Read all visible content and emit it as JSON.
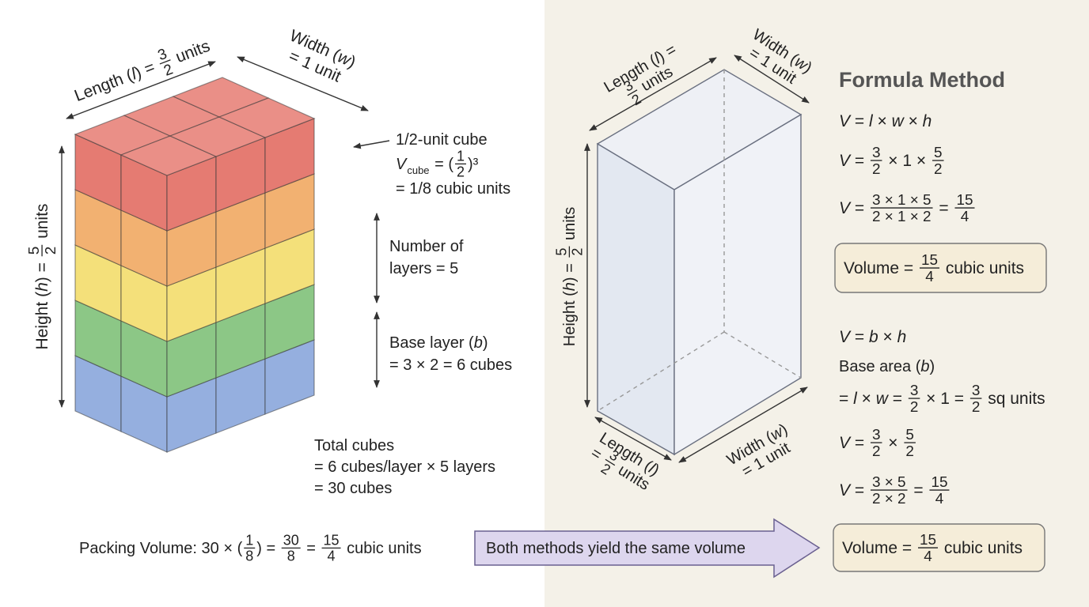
{
  "left": {
    "length": [
      [
        "Length (",
        "l",
        ") = ",
        {
          "num": "3",
          "den": "2"
        },
        " units"
      ]
    ],
    "width": [
      [
        "Width (",
        "w",
        ")"
      ],
      [
        "= 1 unit"
      ]
    ],
    "height": [
      [
        "Height (",
        "h",
        ") = ",
        {
          "num": "5",
          "den": "2"
        },
        " units"
      ]
    ],
    "cube": [
      [
        "1/2-unit cube"
      ],
      [
        "V",
        {
          "sub": "cube"
        },
        " = (",
        {
          "num": "1",
          "den": "2"
        },
        ")³"
      ],
      [
        "= 1/8 cubic units"
      ]
    ],
    "layers": [
      [
        "Number of"
      ],
      [
        "layers = 5"
      ]
    ],
    "base": [
      [
        "Base layer (",
        "b",
        ")"
      ],
      [
        "= 3 × 2 = 6 cubes"
      ]
    ],
    "total": [
      [
        "Total cubes"
      ],
      [
        "= 6 cubes/layer × 5 layers"
      ],
      [
        "= 30 cubes"
      ]
    ],
    "packing": [
      [
        "Packing Volume: 30 × (",
        {
          "num": "1",
          "den": "8"
        },
        ") = ",
        {
          "num": "30",
          "den": "8"
        },
        " = ",
        {
          "num": "15",
          "den": "4"
        },
        " cubic units"
      ]
    ]
  },
  "arrow": [
    [
      "Both methods yield the same volume"
    ]
  ],
  "right": {
    "box": {
      "length_top": [
        [
          "Length (",
          "l",
          ") ="
        ],
        [
          {
            "num": "3",
            "den": "2"
          },
          " units"
        ]
      ],
      "width_top": [
        [
          "Width (",
          "w",
          ")"
        ],
        [
          "= 1 unit"
        ]
      ],
      "height": [
        [
          "Height (",
          "h",
          ") = ",
          {
            "num": "5",
            "den": "2"
          },
          " units"
        ]
      ],
      "length_bottom": [
        [
          "Length (",
          "l",
          ")"
        ],
        [
          "= ",
          {
            "num": "3",
            "den": "2"
          },
          " units"
        ]
      ],
      "width_bottom": [
        [
          "Width (",
          "w",
          ")"
        ],
        [
          "= 1 unit"
        ]
      ]
    },
    "title": [
      [
        "Formula Method"
      ]
    ],
    "f1": [
      [
        "V",
        " = ",
        "l",
        " × ",
        "w",
        " × ",
        "h"
      ]
    ],
    "f2": [
      [
        "V",
        " = ",
        {
          "num": "3",
          "den": "2"
        },
        " × 1 × ",
        {
          "num": "5",
          "den": "2"
        }
      ]
    ],
    "f3": [
      [
        "V",
        " = ",
        {
          "num": "3 × 1 × 5",
          "den": "2 × 1 × 2"
        },
        " = ",
        {
          "num": "15",
          "den": "4"
        }
      ]
    ],
    "volume1": [
      [
        "Volume = ",
        {
          "num": "15",
          "den": "4"
        },
        " cubic units"
      ]
    ],
    "f4": [
      [
        "V",
        " = ",
        "b",
        " × ",
        "h"
      ]
    ],
    "f5": [
      [
        "Base area (",
        "b",
        ")"
      ]
    ],
    "f6": [
      [
        "= ",
        "l",
        " × ",
        "w",
        " = ",
        {
          "num": "3",
          "den": "2"
        },
        " × 1 = ",
        {
          "num": "3",
          "den": "2"
        },
        " sq units"
      ]
    ],
    "f7": [
      [
        "V",
        " = ",
        {
          "num": "3",
          "den": "2"
        },
        " × ",
        {
          "num": "5",
          "den": "2"
        }
      ]
    ],
    "f8": [
      [
        "V",
        " = ",
        {
          "num": "3 × 5",
          "den": "2 × 2"
        },
        " = ",
        {
          "num": "15",
          "den": "4"
        }
      ]
    ],
    "volume2": [
      [
        "Volume = ",
        {
          "num": "15",
          "den": "4"
        },
        " cubic units"
      ]
    ]
  }
}
